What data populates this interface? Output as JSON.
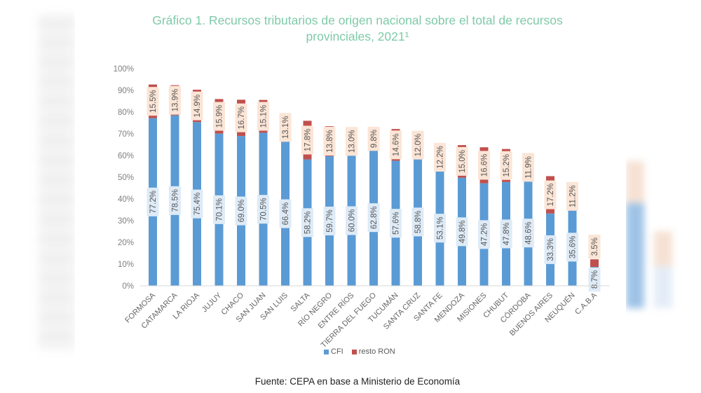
{
  "title_line1": "Gráfico 1. Recursos tributarios de origen nacional sobre el total de recursos",
  "title_line2": "provinciales, 2021¹",
  "source": "Fuente: CEPA en base a Ministerio de Economía",
  "colors": {
    "title": "#7fcaa8",
    "cfi": "#5b9bd5",
    "resto_ron": "#c0504d",
    "cfi_label_bg": "#deebf7",
    "resto_label_bg": "#fbe5d6",
    "axis_line": "#d9d9d9"
  },
  "legend": [
    {
      "key": "cfi",
      "label": "CFI"
    },
    {
      "key": "resto_ron",
      "label": "resto RON"
    }
  ],
  "chart_data": {
    "type": "bar",
    "stacked": true,
    "title": "Gráfico 1. Recursos tributarios de origen nacional sobre el total de recursos provinciales, 2021¹",
    "xlabel": "",
    "ylabel": "",
    "ylim": [
      0,
      100
    ],
    "yticks": [
      "0%",
      "10%",
      "20%",
      "30%",
      "40%",
      "50%",
      "60%",
      "70%",
      "80%",
      "90%",
      "100%"
    ],
    "grid": false,
    "legend_position": "bottom",
    "categories": [
      "FORMOSA",
      "CATAMARCA",
      "LA RIOJA",
      "JUJUY",
      "CHACO",
      "SAN JUAN",
      "SAN LUIS",
      "SALTA",
      "RÍO NEGRO",
      "ENTRE RÍOS",
      "TIERRA DEL FUEGO",
      "TUCUMÁN",
      "SANTA CRUZ",
      "SANTA FE",
      "MENDOZA",
      "MISIONES",
      "CHUBUT",
      "CÓRDOBA",
      "BUENOS AIRES",
      "NEUQUÉN",
      "C.A.B.A"
    ],
    "series": [
      {
        "name": "CFI",
        "values": [
          77.2,
          78.5,
          75.4,
          70.1,
          69.0,
          70.5,
          66.4,
          58.2,
          59.7,
          60.0,
          62.8,
          57.6,
          58.8,
          53.1,
          49.8,
          47.2,
          47.8,
          48.6,
          33.3,
          35.6,
          8.7
        ]
      },
      {
        "name": "resto RON",
        "values": [
          15.5,
          13.9,
          14.9,
          15.9,
          16.7,
          15.1,
          13.1,
          17.8,
          13.8,
          13.0,
          9.8,
          14.6,
          12.0,
          12.2,
          15.0,
          16.6,
          15.2,
          11.9,
          17.2,
          11.2,
          3.5
        ]
      }
    ],
    "data_labels": {
      "CFI": [
        "77.2%",
        "78.5%",
        "75.4%",
        "70.1%",
        "69.0%",
        "70.5%",
        "66.4%",
        "58.2%",
        "59.7%",
        "60.0%",
        "62.8%",
        "57.6%",
        "58.8%",
        "53.1%",
        "49.8%",
        "47.2%",
        "47.8%",
        "48.6%",
        "33.3%",
        "35.6%",
        "8.7%"
      ],
      "resto RON": [
        "15.5%",
        "13.9%",
        "14.9%",
        "15.9%",
        "16.7%",
        "15.1%",
        "13.1%",
        "17.8%",
        "13.8%",
        "13.0%",
        "9.8%",
        "14.6%",
        "12.0%",
        "12.2%",
        "15.0%",
        "16.6%",
        "15.2%",
        "11.9%",
        "17.2%",
        "11.2%",
        "3.5%"
      ]
    }
  }
}
